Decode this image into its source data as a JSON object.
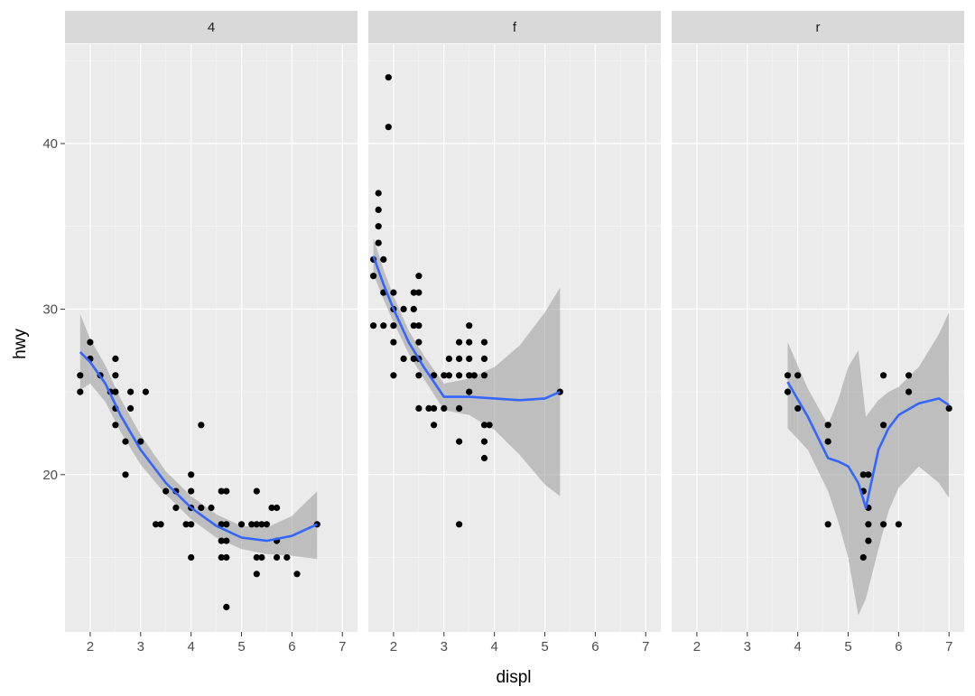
{
  "chart_data": {
    "type": "scatter",
    "facet_by": "drv",
    "xlabel": "displ",
    "ylabel": "hwy",
    "xlim": [
      1.5,
      7.3
    ],
    "ylim": [
      10.5,
      46
    ],
    "x_ticks": [
      "2",
      "3",
      "4",
      "5",
      "6",
      "7"
    ],
    "y_ticks": [
      "20",
      "30",
      "40"
    ],
    "grid": true,
    "colors": {
      "panel_bg": "#ebebeb",
      "strip_bg": "#d9d9d9",
      "grid_major": "#ffffff",
      "point": "#000000",
      "smooth_line": "#3366ff",
      "ribbon": "#999999"
    },
    "facets": [
      {
        "label": "4",
        "points": [
          [
            1.8,
            26
          ],
          [
            1.8,
            25
          ],
          [
            2.0,
            28
          ],
          [
            2.0,
            27
          ],
          [
            2.2,
            26
          ],
          [
            2.4,
            25
          ],
          [
            2.5,
            27
          ],
          [
            2.5,
            26
          ],
          [
            2.5,
            25
          ],
          [
            2.5,
            24
          ],
          [
            2.5,
            23
          ],
          [
            2.7,
            22
          ],
          [
            2.7,
            20
          ],
          [
            2.8,
            25
          ],
          [
            2.8,
            24
          ],
          [
            3.0,
            22
          ],
          [
            3.1,
            25
          ],
          [
            3.3,
            17
          ],
          [
            3.4,
            17
          ],
          [
            3.5,
            19
          ],
          [
            3.7,
            19
          ],
          [
            3.7,
            18
          ],
          [
            3.9,
            17
          ],
          [
            4.0,
            20
          ],
          [
            4.0,
            19
          ],
          [
            4.0,
            18
          ],
          [
            4.0,
            17
          ],
          [
            4.0,
            15
          ],
          [
            4.2,
            23
          ],
          [
            4.2,
            18
          ],
          [
            4.4,
            18
          ],
          [
            4.6,
            19
          ],
          [
            4.6,
            17
          ],
          [
            4.6,
            16
          ],
          [
            4.6,
            15
          ],
          [
            4.7,
            19
          ],
          [
            4.7,
            17
          ],
          [
            4.7,
            16
          ],
          [
            4.7,
            15
          ],
          [
            4.7,
            12
          ],
          [
            5.0,
            17
          ],
          [
            5.2,
            17
          ],
          [
            5.3,
            19
          ],
          [
            5.3,
            17
          ],
          [
            5.3,
            15
          ],
          [
            5.3,
            14
          ],
          [
            5.4,
            17
          ],
          [
            5.4,
            15
          ],
          [
            5.5,
            17
          ],
          [
            5.6,
            18
          ],
          [
            5.7,
            18
          ],
          [
            5.7,
            16
          ],
          [
            5.7,
            15
          ],
          [
            5.9,
            15
          ],
          [
            6.1,
            14
          ],
          [
            6.5,
            17
          ]
        ],
        "smooth": [
          [
            1.8,
            27.4
          ],
          [
            2.0,
            26.8
          ],
          [
            2.3,
            25.5
          ],
          [
            2.6,
            23.6
          ],
          [
            3.0,
            21.5
          ],
          [
            3.5,
            19.5
          ],
          [
            4.0,
            18.0
          ],
          [
            4.5,
            16.9
          ],
          [
            5.0,
            16.2
          ],
          [
            5.5,
            16.0
          ],
          [
            6.0,
            16.3
          ],
          [
            6.5,
            17.0
          ]
        ],
        "ribbon": [
          [
            1.8,
            29.7,
            25.1
          ],
          [
            2.0,
            28.2,
            25.5
          ],
          [
            2.3,
            26.6,
            24.4
          ],
          [
            2.6,
            24.6,
            22.6
          ],
          [
            3.0,
            22.4,
            20.6
          ],
          [
            3.5,
            20.2,
            18.8
          ],
          [
            4.0,
            18.7,
            17.3
          ],
          [
            4.5,
            17.6,
            16.2
          ],
          [
            5.0,
            16.9,
            15.5
          ],
          [
            5.5,
            16.8,
            15.2
          ],
          [
            6.0,
            17.5,
            15.1
          ],
          [
            6.5,
            19.0,
            14.9
          ]
        ]
      },
      {
        "label": "f",
        "points": [
          [
            1.6,
            33
          ],
          [
            1.6,
            32
          ],
          [
            1.6,
            29
          ],
          [
            1.7,
            37
          ],
          [
            1.7,
            36
          ],
          [
            1.7,
            35
          ],
          [
            1.7,
            34
          ],
          [
            1.8,
            33
          ],
          [
            1.8,
            31
          ],
          [
            1.8,
            29
          ],
          [
            1.9,
            44
          ],
          [
            1.9,
            41
          ],
          [
            2.0,
            31
          ],
          [
            2.0,
            30
          ],
          [
            2.0,
            29
          ],
          [
            2.0,
            28
          ],
          [
            2.0,
            26
          ],
          [
            2.2,
            30
          ],
          [
            2.2,
            27
          ],
          [
            2.4,
            31
          ],
          [
            2.4,
            30
          ],
          [
            2.4,
            29
          ],
          [
            2.4,
            27
          ],
          [
            2.5,
            32
          ],
          [
            2.5,
            31
          ],
          [
            2.5,
            29
          ],
          [
            2.5,
            28
          ],
          [
            2.5,
            27
          ],
          [
            2.5,
            26
          ],
          [
            2.5,
            24
          ],
          [
            2.7,
            24
          ],
          [
            2.8,
            26
          ],
          [
            2.8,
            24
          ],
          [
            2.8,
            23
          ],
          [
            3.0,
            26
          ],
          [
            3.0,
            24
          ],
          [
            3.1,
            27
          ],
          [
            3.1,
            26
          ],
          [
            3.3,
            28
          ],
          [
            3.3,
            27
          ],
          [
            3.3,
            26
          ],
          [
            3.3,
            24
          ],
          [
            3.3,
            22
          ],
          [
            3.3,
            17
          ],
          [
            3.5,
            29
          ],
          [
            3.5,
            28
          ],
          [
            3.5,
            27
          ],
          [
            3.5,
            26
          ],
          [
            3.5,
            25
          ],
          [
            3.6,
            26
          ],
          [
            3.8,
            28
          ],
          [
            3.8,
            27
          ],
          [
            3.8,
            26
          ],
          [
            3.8,
            23
          ],
          [
            3.8,
            22
          ],
          [
            3.8,
            21
          ],
          [
            3.9,
            23
          ],
          [
            5.3,
            25
          ]
        ],
        "smooth": [
          [
            1.6,
            33.2
          ],
          [
            1.8,
            31.5
          ],
          [
            2.0,
            30.0
          ],
          [
            2.3,
            28.0
          ],
          [
            2.6,
            26.5
          ],
          [
            3.0,
            24.7
          ],
          [
            3.5,
            24.7
          ],
          [
            4.0,
            24.6
          ],
          [
            4.5,
            24.5
          ],
          [
            5.0,
            24.6
          ],
          [
            5.3,
            25.0
          ]
        ],
        "ribbon": [
          [
            1.6,
            34.3,
            32.1
          ],
          [
            1.8,
            32.4,
            30.6
          ],
          [
            2.0,
            30.8,
            29.2
          ],
          [
            2.3,
            28.7,
            27.3
          ],
          [
            2.6,
            27.2,
            25.8
          ],
          [
            3.0,
            25.5,
            23.9
          ],
          [
            3.5,
            25.8,
            23.6
          ],
          [
            4.0,
            26.5,
            22.7
          ],
          [
            4.5,
            27.8,
            21.2
          ],
          [
            5.0,
            29.8,
            19.4
          ],
          [
            5.3,
            31.3,
            18.7
          ]
        ]
      },
      {
        "label": "r",
        "points": [
          [
            3.8,
            26
          ],
          [
            3.8,
            25
          ],
          [
            4.0,
            26
          ],
          [
            4.0,
            24
          ],
          [
            4.6,
            23
          ],
          [
            4.6,
            22
          ],
          [
            4.6,
            17
          ],
          [
            5.3,
            20
          ],
          [
            5.3,
            19
          ],
          [
            5.3,
            15
          ],
          [
            5.4,
            20
          ],
          [
            5.4,
            18
          ],
          [
            5.4,
            17
          ],
          [
            5.4,
            16
          ],
          [
            5.7,
            26
          ],
          [
            5.7,
            23
          ],
          [
            5.7,
            17
          ],
          [
            6.0,
            17
          ],
          [
            6.2,
            26
          ],
          [
            6.2,
            25
          ],
          [
            7.0,
            24
          ]
        ],
        "smooth": [
          [
            3.8,
            25.6
          ],
          [
            4.2,
            23.5
          ],
          [
            4.6,
            21.0
          ],
          [
            4.8,
            20.8
          ],
          [
            5.0,
            20.5
          ],
          [
            5.2,
            19.5
          ],
          [
            5.35,
            18.0
          ],
          [
            5.6,
            21.5
          ],
          [
            5.8,
            22.8
          ],
          [
            6.0,
            23.6
          ],
          [
            6.4,
            24.3
          ],
          [
            6.8,
            24.6
          ],
          [
            7.0,
            24.2
          ]
        ],
        "ribbon": [
          [
            3.8,
            28.0,
            22.8
          ],
          [
            4.2,
            25.2,
            21.5
          ],
          [
            4.6,
            23.0,
            19.0
          ],
          [
            4.8,
            24.5,
            17.2
          ],
          [
            5.0,
            26.5,
            15.0
          ],
          [
            5.2,
            27.5,
            11.5
          ],
          [
            5.35,
            23.5,
            12.5
          ],
          [
            5.6,
            24.5,
            15.5
          ],
          [
            5.8,
            25.0,
            17.8
          ],
          [
            6.0,
            25.3,
            19.2
          ],
          [
            6.4,
            26.5,
            20.5
          ],
          [
            6.8,
            28.5,
            19.5
          ],
          [
            7.0,
            29.8,
            18.6
          ]
        ]
      }
    ]
  }
}
